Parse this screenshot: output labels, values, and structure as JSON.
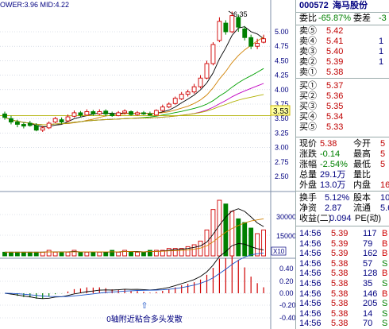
{
  "top_left": {
    "label": "OWER:3.96 MID:4.22"
  },
  "price_axis": {
    "ticks": [
      "5.00",
      "4.75",
      "4.50",
      "4.25",
      "4.00",
      "3.75",
      "3.50",
      "3.25",
      "3.00",
      "2.75",
      "2.50"
    ],
    "current_price_tag": "3.53",
    "peak_label": "6.35"
  },
  "volume_axis": {
    "ticks": [
      "30000",
      "15000"
    ],
    "multiplier": "X10"
  },
  "macd_axis": {
    "ticks": [
      "0.40",
      "0.20",
      "0.00",
      "-0.20",
      "-0.40"
    ]
  },
  "macd_note": "0轴附近粘合多头发散",
  "colors": {
    "up": "#d00000",
    "down": "#008000",
    "grid": "#c0c8d8",
    "text_blue": "#000080"
  },
  "chart_data": {
    "type": "candlestick",
    "candles": [
      {
        "o": 3.58,
        "c": 3.52,
        "h": 3.62,
        "l": 3.48
      },
      {
        "o": 3.5,
        "c": 3.44,
        "h": 3.55,
        "l": 3.4
      },
      {
        "o": 3.44,
        "c": 3.4,
        "h": 3.48,
        "l": 3.35
      },
      {
        "o": 3.4,
        "c": 3.37,
        "h": 3.44,
        "l": 3.33
      },
      {
        "o": 3.42,
        "c": 3.38,
        "h": 3.46,
        "l": 3.36
      },
      {
        "o": 3.38,
        "c": 3.3,
        "h": 3.42,
        "l": 3.28
      },
      {
        "o": 3.3,
        "c": 3.34,
        "h": 3.37,
        "l": 3.27
      },
      {
        "o": 3.34,
        "c": 3.42,
        "h": 3.45,
        "l": 3.32
      },
      {
        "o": 3.44,
        "c": 3.5,
        "h": 3.53,
        "l": 3.42
      },
      {
        "o": 3.48,
        "c": 3.44,
        "h": 3.52,
        "l": 3.41
      },
      {
        "o": 3.46,
        "c": 3.53,
        "h": 3.57,
        "l": 3.44
      },
      {
        "o": 3.54,
        "c": 3.6,
        "h": 3.64,
        "l": 3.52
      },
      {
        "o": 3.6,
        "c": 3.56,
        "h": 3.63,
        "l": 3.52
      },
      {
        "o": 3.56,
        "c": 3.62,
        "h": 3.66,
        "l": 3.55
      },
      {
        "o": 3.62,
        "c": 3.58,
        "h": 3.65,
        "l": 3.55
      },
      {
        "o": 3.58,
        "c": 3.62,
        "h": 3.66,
        "l": 3.56
      },
      {
        "o": 3.63,
        "c": 3.58,
        "h": 3.66,
        "l": 3.54
      },
      {
        "o": 3.58,
        "c": 3.55,
        "h": 3.62,
        "l": 3.53
      },
      {
        "o": 3.55,
        "c": 3.6,
        "h": 3.63,
        "l": 3.54
      },
      {
        "o": 3.6,
        "c": 3.63,
        "h": 3.66,
        "l": 3.57
      },
      {
        "o": 3.62,
        "c": 3.57,
        "h": 3.64,
        "l": 3.55
      },
      {
        "o": 3.57,
        "c": 3.6,
        "h": 3.63,
        "l": 3.55
      },
      {
        "o": 3.6,
        "c": 3.58,
        "h": 3.63,
        "l": 3.56
      },
      {
        "o": 3.58,
        "c": 3.56,
        "h": 3.62,
        "l": 3.55
      },
      {
        "o": 3.56,
        "c": 3.64,
        "h": 3.66,
        "l": 3.55
      },
      {
        "o": 3.64,
        "c": 3.7,
        "h": 3.74,
        "l": 3.62
      },
      {
        "o": 3.7,
        "c": 3.75,
        "h": 3.78,
        "l": 3.68
      },
      {
        "o": 3.76,
        "c": 3.85,
        "h": 3.88,
        "l": 3.74
      },
      {
        "o": 3.84,
        "c": 3.92,
        "h": 3.96,
        "l": 3.82
      },
      {
        "o": 3.92,
        "c": 3.96,
        "h": 4.0,
        "l": 3.88
      },
      {
        "o": 3.96,
        "c": 4.05,
        "h": 4.1,
        "l": 3.93
      },
      {
        "o": 4.05,
        "c": 4.2,
        "h": 4.25,
        "l": 4.02
      },
      {
        "o": 4.2,
        "c": 4.45,
        "h": 4.5,
        "l": 4.18
      },
      {
        "o": 4.45,
        "c": 4.78,
        "h": 4.82,
        "l": 4.42
      },
      {
        "o": 4.85,
        "c": 5.18,
        "h": 5.25,
        "l": 4.82
      },
      {
        "o": 5.15,
        "c": 5.0,
        "h": 5.2,
        "l": 4.95
      },
      {
        "o": 5.0,
        "c": 5.28,
        "h": 5.35,
        "l": 4.98
      },
      {
        "o": 5.25,
        "c": 5.08,
        "h": 5.3,
        "l": 5.0
      },
      {
        "o": 5.05,
        "c": 4.9,
        "h": 5.1,
        "l": 4.85
      },
      {
        "o": 4.9,
        "c": 4.75,
        "h": 4.95,
        "l": 4.7
      },
      {
        "o": 4.75,
        "c": 4.8,
        "h": 4.88,
        "l": 4.7
      },
      {
        "o": 4.82,
        "c": 4.88,
        "h": 4.95,
        "l": 4.8
      }
    ],
    "volumes": [
      2,
      2,
      2,
      2,
      2,
      2,
      2,
      3,
      2,
      2,
      2,
      3,
      2,
      2,
      2,
      2,
      2,
      3,
      2,
      3,
      2,
      2,
      2,
      3,
      3,
      3,
      4,
      4,
      4,
      5,
      6,
      8,
      14,
      25,
      30,
      28,
      24,
      20,
      18,
      15,
      12,
      14
    ]
  },
  "quote": {
    "code": "000572",
    "name": "海马股份",
    "commission_ratio_label": "委比",
    "commission_ratio": "-65.87%",
    "commission_diff_label": "委差",
    "commission_diff": "-3",
    "sells": [
      {
        "label": "卖⑤",
        "price": "5.42",
        "vol": ""
      },
      {
        "label": "卖④",
        "price": "5.41",
        "vol": "1"
      },
      {
        "label": "卖③",
        "price": "5.40",
        "vol": "1"
      },
      {
        "label": "卖②",
        "price": "5.39",
        "vol": "1"
      },
      {
        "label": "卖①",
        "price": "5.38",
        "vol": ""
      }
    ],
    "buys": [
      {
        "label": "买①",
        "price": "5.37",
        "vol": ""
      },
      {
        "label": "买②",
        "price": "5.36",
        "vol": ""
      },
      {
        "label": "买③",
        "price": "5.35",
        "vol": ""
      },
      {
        "label": "买④",
        "price": "5.34",
        "vol": ""
      },
      {
        "label": "买⑤",
        "price": "5.33",
        "vol": ""
      }
    ],
    "stats_a": [
      {
        "label": "现价",
        "value": "5.38",
        "label2": "今开",
        "value2": "5"
      },
      {
        "label": "涨跌",
        "value": "-0.14",
        "label2": "最高",
        "value2": "5"
      },
      {
        "label": "涨幅",
        "value": "-2.54%",
        "label2": "最低",
        "value2": "5"
      },
      {
        "label": "总量",
        "value": "29.1万",
        "label2": "量比",
        "value2": ""
      },
      {
        "label": "外盘",
        "value": "13.0万",
        "label2": "内盘",
        "value2": "16"
      }
    ],
    "stats_b": [
      {
        "label": "换手",
        "value": "5.12%",
        "label2": "股本",
        "value2": "10"
      },
      {
        "label": "净资",
        "value": "2.87",
        "label2": "流通",
        "value2": "5.6"
      },
      {
        "label": "收益(二)",
        "value": "0.094",
        "label2": "PE(动)",
        "value2": ""
      }
    ],
    "ticks": [
      {
        "time": "14:56",
        "price": "5.39",
        "vol": "117",
        "side": "B"
      },
      {
        "time": "14:56",
        "price": "5.39",
        "vol": "79",
        "side": "B"
      },
      {
        "time": "14:56",
        "price": "5.39",
        "vol": "162",
        "side": "B"
      },
      {
        "time": "14:56",
        "price": "5.38",
        "vol": "57",
        "side": "S"
      },
      {
        "time": "14:56",
        "price": "5.38",
        "vol": "128",
        "side": "B"
      },
      {
        "time": "14:56",
        "price": "5.38",
        "vol": "35",
        "side": "S"
      },
      {
        "time": "14:56",
        "price": "5.38",
        "vol": "146",
        "side": "B"
      },
      {
        "time": "14:56",
        "price": "5.38",
        "vol": "205",
        "side": "S"
      },
      {
        "time": "14:56",
        "price": "5.38",
        "vol": "14",
        "side": "S"
      },
      {
        "time": "14:56",
        "price": "5.38",
        "vol": "70",
        "side": "S"
      }
    ]
  }
}
